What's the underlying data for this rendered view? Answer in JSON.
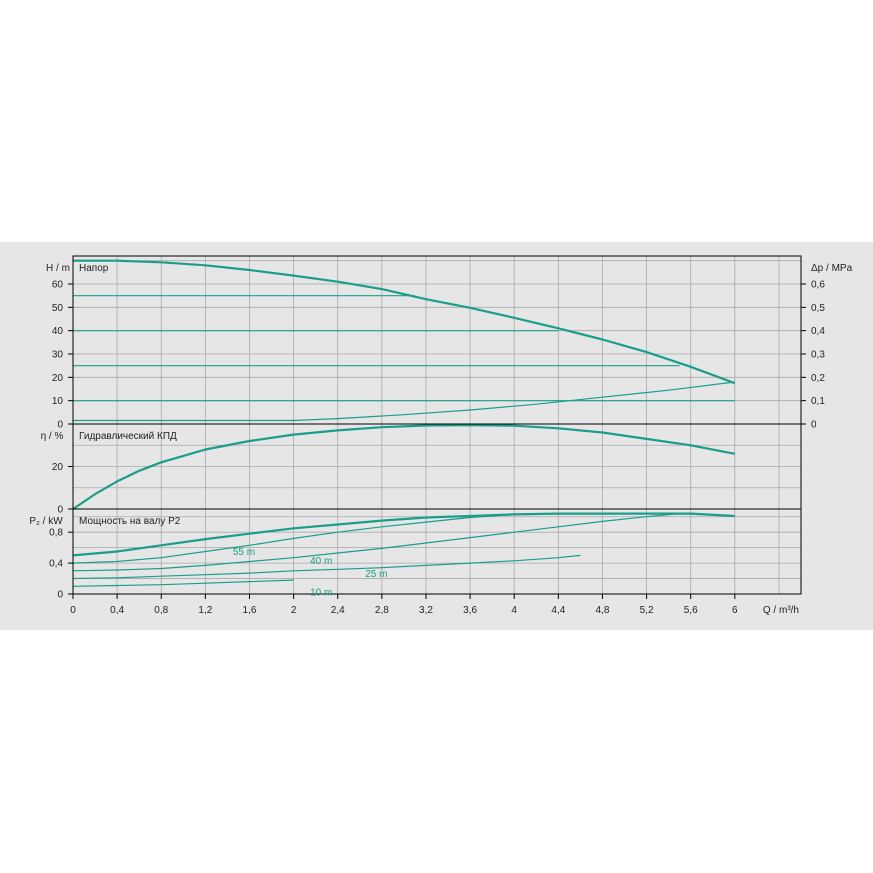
{
  "colors": {
    "curve": "#1a9e8a",
    "grid": "#a9a9a9",
    "panel_bg": "#e6e6e6",
    "axis": "#000000"
  },
  "x_axis": {
    "label": "Q / m³/h",
    "ticks": [
      "0",
      "0,4",
      "0,8",
      "1,2",
      "1,6",
      "2",
      "2,4",
      "2,8",
      "3,2",
      "3,6",
      "4",
      "4,4",
      "4,8",
      "5,2",
      "5,6",
      "6"
    ],
    "range": [
      0,
      6.6
    ]
  },
  "panels": {
    "head": {
      "title": "Напор",
      "ylabel": "H / m",
      "yticks": [
        "0",
        "10",
        "20",
        "30",
        "40",
        "50",
        "60"
      ],
      "y2label": "Δp / MPa",
      "y2ticks": [
        "0",
        "0,1",
        "0,2",
        "0,3",
        "0,4",
        "0,5",
        "0,6"
      ],
      "range": [
        0,
        72
      ]
    },
    "efficiency": {
      "title": "Гидравлический КПД",
      "ylabel": "η / %",
      "yticks": [
        "0",
        "20"
      ],
      "range": [
        0,
        40
      ]
    },
    "power": {
      "title": "Мощность на валу P2",
      "ylabel": "P₂ / kW",
      "yticks": [
        "0",
        "0,4",
        "0,8"
      ],
      "range": [
        0,
        1.1
      ],
      "curve_labels": [
        "55 m",
        "40 m",
        "25 m",
        "10 m"
      ]
    }
  },
  "chart_data": [
    {
      "type": "line",
      "panel": "head",
      "title": "Напор",
      "xlabel": "Q / m³/h",
      "ylabel": "H / m",
      "y2label": "Δp / MPa",
      "xlim": [
        0,
        6.6
      ],
      "ylim": [
        0,
        72
      ],
      "series": [
        {
          "name": "",
          "x": [
            0,
            0.4,
            0.8,
            1.2,
            1.6,
            2.0,
            2.4,
            2.8,
            3.2,
            3.6,
            4.0,
            4.4,
            4.8,
            5.2,
            5.6,
            6.0
          ],
          "y": [
            70,
            70,
            69.3,
            68,
            66,
            63.6,
            61,
            57.8,
            53.5,
            49.8,
            45.5,
            41,
            36.2,
            30.8,
            24.5,
            17.5
          ]
        },
        {
          "name": "",
          "x": [
            0,
            1.0,
            2.0,
            2.4,
            3.0,
            3.6,
            4.2,
            4.8,
            5.4,
            6.0
          ],
          "y": [
            1.5,
            1.5,
            1.5,
            2.3,
            4,
            6,
            8.5,
            11.5,
            14.5,
            18
          ]
        },
        {
          "name": "",
          "x": [
            0,
            3.1
          ],
          "y": [
            55,
            55
          ]
        },
        {
          "name": "",
          "x": [
            0,
            4.4
          ],
          "y": [
            40,
            40
          ]
        },
        {
          "name": "",
          "x": [
            0,
            5.5
          ],
          "y": [
            25,
            25
          ]
        },
        {
          "name": "",
          "x": [
            0,
            6.0
          ],
          "y": [
            10,
            10
          ]
        }
      ]
    },
    {
      "type": "line",
      "panel": "efficiency",
      "title": "Гидравлический КПД",
      "xlabel": "Q / m³/h",
      "ylabel": "η / %",
      "xlim": [
        0,
        6.6
      ],
      "ylim": [
        0,
        40
      ],
      "series": [
        {
          "name": "",
          "x": [
            0,
            0.2,
            0.4,
            0.6,
            0.8,
            1.0,
            1.2,
            1.6,
            2.0,
            2.4,
            2.8,
            3.2,
            3.6,
            4.0,
            4.4,
            4.8,
            5.2,
            5.6,
            6.0
          ],
          "y": [
            0,
            7,
            13,
            18,
            22,
            25,
            28,
            32,
            35,
            37,
            38.5,
            39.3,
            39.5,
            39.2,
            38,
            36,
            33,
            30,
            26
          ]
        }
      ]
    },
    {
      "type": "line",
      "panel": "power",
      "title": "Мощность на валу P2",
      "xlabel": "Q / m³/h",
      "ylabel": "P₂ / kW",
      "xlim": [
        0,
        6.6
      ],
      "ylim": [
        0,
        1.1
      ],
      "series": [
        {
          "name": "",
          "x": [
            0,
            0.4,
            0.8,
            1.2,
            1.6,
            2.0,
            2.4,
            2.8,
            3.2,
            3.6,
            4.0,
            4.4,
            4.8,
            5.2,
            5.6,
            6.0
          ],
          "y": [
            0.5,
            0.55,
            0.63,
            0.71,
            0.78,
            0.85,
            0.9,
            0.95,
            0.99,
            1.01,
            1.03,
            1.04,
            1.04,
            1.04,
            1.04,
            1.01
          ]
        },
        {
          "name": "55 m",
          "x": [
            0,
            0.4,
            0.8,
            1.2,
            1.6,
            2.0,
            2.4,
            2.8,
            3.2,
            3.6,
            4.0,
            4.4
          ],
          "y": [
            0.4,
            0.42,
            0.47,
            0.55,
            0.63,
            0.72,
            0.8,
            0.87,
            0.93,
            0.99,
            1.03,
            1.04
          ]
        },
        {
          "name": "40 m",
          "x": [
            0,
            0.4,
            0.8,
            1.2,
            1.6,
            2.0,
            2.4,
            2.8,
            3.2,
            3.6,
            4.0,
            4.4,
            4.8,
            5.2,
            5.5
          ],
          "y": [
            0.3,
            0.31,
            0.33,
            0.37,
            0.42,
            0.47,
            0.53,
            0.59,
            0.66,
            0.73,
            0.8,
            0.87,
            0.94,
            1.0,
            1.04
          ]
        },
        {
          "name": "25 m",
          "x": [
            0,
            0.4,
            0.8,
            1.2,
            1.6,
            2.0,
            2.4,
            2.8,
            3.2,
            3.6,
            4.0,
            4.4,
            4.6
          ],
          "y": [
            0.2,
            0.21,
            0.23,
            0.25,
            0.27,
            0.3,
            0.32,
            0.34,
            0.37,
            0.4,
            0.43,
            0.47,
            0.5
          ]
        },
        {
          "name": "10 m",
          "x": [
            0,
            0.4,
            0.8,
            1.2,
            1.6,
            2.0
          ],
          "y": [
            0.1,
            0.11,
            0.12,
            0.14,
            0.16,
            0.18
          ]
        }
      ]
    }
  ]
}
